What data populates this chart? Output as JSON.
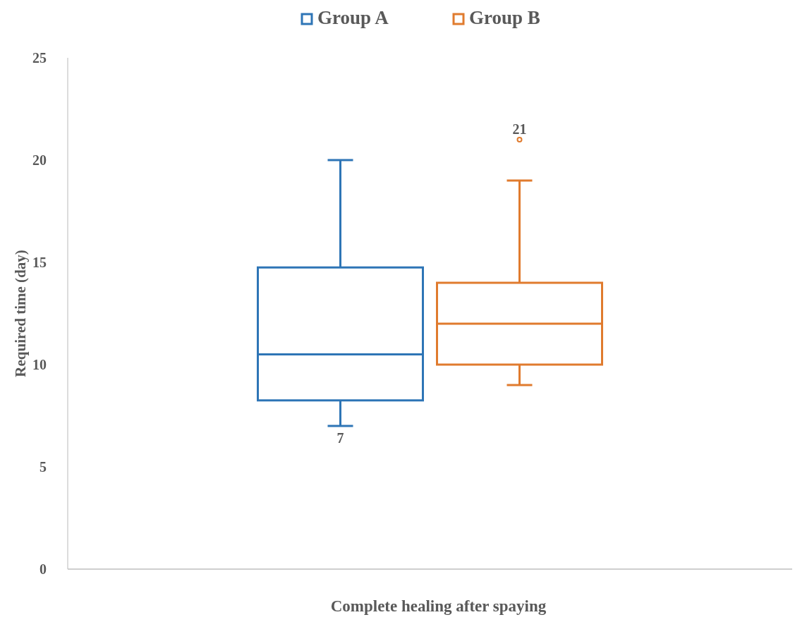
{
  "chart_data": {
    "type": "box",
    "xlabel": "Complete healing after spaying",
    "ylabel": "Required time (day)",
    "categories": [
      null
    ],
    "series": [
      {
        "name": "Group A",
        "color": "#2e75b6",
        "boxes": [
          {
            "low": 7,
            "q1": 8.25,
            "median": 10.5,
            "q3": 14.75,
            "high": 20
          }
        ]
      },
      {
        "name": "Group B",
        "color": "#e07b2e",
        "boxes": [
          {
            "low": 9,
            "q1": 10,
            "median": 12,
            "q3": 14,
            "high": 19,
            "outliers": [
              21
            ]
          }
        ]
      }
    ],
    "annotations": [
      {
        "text": "7",
        "y": 7
      },
      "21"
    ],
    "ylim": [
      0,
      25
    ],
    "yticks": [
      0,
      5,
      10,
      15,
      20,
      25
    ],
    "grid": false,
    "legend": "top"
  }
}
